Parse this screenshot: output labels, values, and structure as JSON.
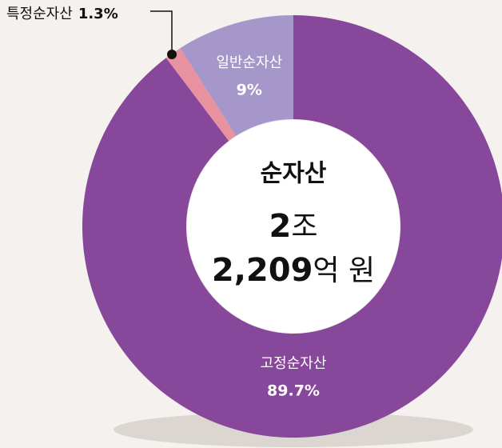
{
  "chart_data": {
    "type": "donut",
    "categories": [
      "고정순자산",
      "특정순자산",
      "일반순자산"
    ],
    "values": [
      89.7,
      1.3,
      9
    ],
    "value_labels": [
      "89.7%",
      "1.3%",
      "9%"
    ],
    "colors": [
      "#87479b",
      "#e8929f",
      "#a597c9"
    ],
    "center_title": "순자산",
    "center_total": [
      {
        "number": "2",
        "unit": "조"
      },
      {
        "number": "2,209",
        "unit": "억 원"
      }
    ]
  }
}
